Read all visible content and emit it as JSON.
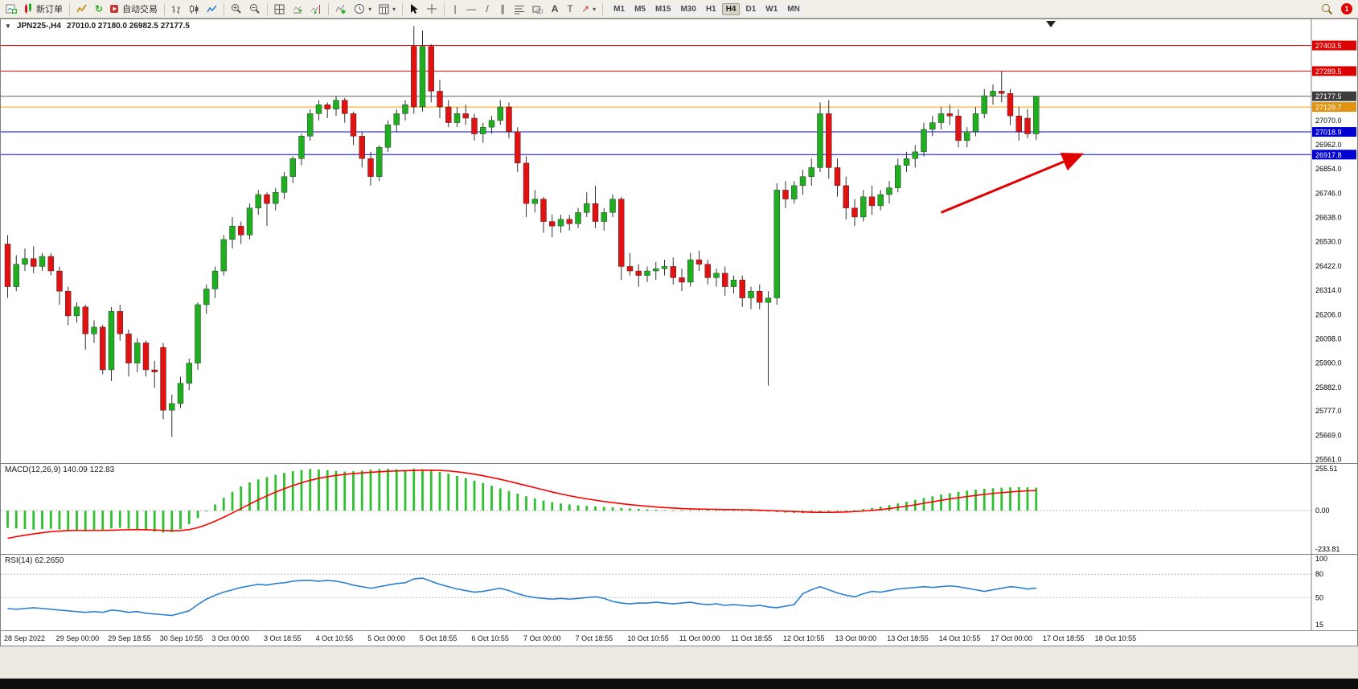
{
  "toolbar": {
    "new_order_label": "新订单",
    "autotrade_label": "自动交易",
    "timeframes": [
      "M1",
      "M5",
      "M15",
      "M30",
      "H1",
      "H4",
      "D1",
      "W1",
      "MN"
    ],
    "active_timeframe": "H4",
    "alert_count": "1"
  },
  "window": {
    "symbol": "JPN225-,H4",
    "ohlc": "27010.0 27180.0 26982.5 27177.5"
  },
  "macd": {
    "label": "MACD(12,26,9) 140.09 122.83",
    "axis_labels": [
      "255.51",
      "0.00",
      "-233.81"
    ]
  },
  "rsi": {
    "label": "RSI(14) 62.2650",
    "axis_labels": [
      "100",
      "80",
      "50",
      "15"
    ]
  },
  "chart_data": {
    "type": "candlestick",
    "symbol": "JPN225-,H4",
    "timeframe": "H4",
    "title": "JPN225-,H4  27010.0 27180.0 26982.5 27177.5",
    "current_bar": {
      "open": 27010.0,
      "high": 27180.0,
      "low": 26982.5,
      "close": 27177.5
    },
    "y_range": [
      25545,
      27520
    ],
    "colors": {
      "bull": "#1fae1f",
      "bear": "#e01212",
      "wick": "#333333",
      "macd_hist": "#2fbf2f",
      "macd_signal": "#ff0000",
      "rsi_line": "#2a7fd4",
      "arrow": "#e00000"
    },
    "price_axis": {
      "badges": [
        {
          "price": 27403.5,
          "color": "#dd0000"
        },
        {
          "price": 27289.5,
          "color": "#dd0000"
        },
        {
          "price": 27177.5,
          "color": "#3c3c3c"
        },
        {
          "price": 27129.7,
          "color": "#e09410"
        },
        {
          "price": 27018.9,
          "color": "#0000d0"
        },
        {
          "price": 26917.8,
          "color": "#0000d0"
        }
      ],
      "labels": [
        27070.0,
        26962.0,
        26854.0,
        26746.0,
        26638.0,
        26530.0,
        26422.0,
        26314.0,
        26206.0,
        26098.0,
        25990.0,
        25882.0,
        25777.0,
        25669.0,
        25561.0
      ]
    },
    "hlines": [
      {
        "price": 27403.5,
        "color": "#ff0000"
      },
      {
        "price": 27289.5,
        "color": "#ff0000"
      },
      {
        "price": 27177.5,
        "color": "#606060"
      },
      {
        "price": 27129.7,
        "color": "#ff9c00"
      },
      {
        "price": 27018.9,
        "color": "#0000ff"
      },
      {
        "price": 26917.8,
        "color": "#0000ff"
      }
    ],
    "annotations": [
      {
        "type": "arrow",
        "from_index": 108,
        "from_price": 26660,
        "to_index": 124,
        "to_price": 26915,
        "color": "#e00000"
      }
    ],
    "x_labels": [
      "28 Sep 2022",
      "29 Sep 00:00",
      "29 Sep 18:55",
      "30 Sep 10:55",
      "3 Oct 00:00",
      "3 Oct 18:55",
      "4 Oct 10:55",
      "5 Oct 00:00",
      "5 Oct 18:55",
      "6 Oct 10:55",
      "7 Oct 00:00",
      "7 Oct 18:55",
      "10 Oct 10:55",
      "11 Oct 00:00",
      "11 Oct 18:55",
      "12 Oct 10:55",
      "13 Oct 00:00",
      "13 Oct 18:55",
      "14 Oct 10:55",
      "17 Oct 00:00",
      "17 Oct 18:55",
      "18 Oct 10:55"
    ],
    "ohlc": [
      [
        26520,
        26560,
        26280,
        26330
      ],
      [
        26330,
        26470,
        26310,
        26430
      ],
      [
        26430,
        26500,
        26400,
        26455
      ],
      [
        26455,
        26510,
        26390,
        26420
      ],
      [
        26420,
        26480,
        26400,
        26465
      ],
      [
        26465,
        26480,
        26380,
        26400
      ],
      [
        26400,
        26420,
        26250,
        26310
      ],
      [
        26310,
        26330,
        26160,
        26200
      ],
      [
        26200,
        26260,
        26170,
        26240
      ],
      [
        26240,
        26250,
        26050,
        26120
      ],
      [
        26120,
        26180,
        26080,
        26150
      ],
      [
        26150,
        26160,
        25940,
        25960
      ],
      [
        25960,
        26240,
        25910,
        26220
      ],
      [
        26220,
        26250,
        26090,
        26120
      ],
      [
        26120,
        26140,
        25930,
        25990
      ],
      [
        25990,
        26100,
        25950,
        26080
      ],
      [
        26080,
        26090,
        25930,
        25960
      ],
      [
        25960,
        26000,
        25880,
        25950
      ],
      [
        26060,
        26080,
        25740,
        25780
      ],
      [
        25780,
        25850,
        25661,
        25810
      ],
      [
        25810,
        25930,
        25790,
        25900
      ],
      [
        25900,
        26010,
        25870,
        25990
      ],
      [
        25990,
        26260,
        25960,
        26250
      ],
      [
        26250,
        26340,
        26210,
        26320
      ],
      [
        26320,
        26420,
        26280,
        26400
      ],
      [
        26400,
        26560,
        26380,
        26540
      ],
      [
        26540,
        26640,
        26500,
        26600
      ],
      [
        26600,
        26620,
        26520,
        26560
      ],
      [
        26560,
        26700,
        26540,
        26680
      ],
      [
        26680,
        26760,
        26650,
        26740
      ],
      [
        26740,
        26750,
        26600,
        26700
      ],
      [
        26700,
        26770,
        26670,
        26750
      ],
      [
        26750,
        26840,
        26720,
        26820
      ],
      [
        26820,
        26910,
        26790,
        26900
      ],
      [
        26900,
        27010,
        26870,
        27000
      ],
      [
        27000,
        27120,
        26980,
        27100
      ],
      [
        27100,
        27160,
        27070,
        27140
      ],
      [
        27140,
        27150,
        27080,
        27120
      ],
      [
        27120,
        27180,
        27090,
        27160
      ],
      [
        27160,
        27170,
        27060,
        27100
      ],
      [
        27100,
        27110,
        26960,
        27000
      ],
      [
        27000,
        27020,
        26860,
        26900
      ],
      [
        26900,
        26930,
        26780,
        26820
      ],
      [
        26820,
        26960,
        26800,
        26950
      ],
      [
        26950,
        27070,
        26930,
        27050
      ],
      [
        27050,
        27120,
        27020,
        27100
      ],
      [
        27100,
        27160,
        27070,
        27140
      ],
      [
        27400,
        27490,
        27100,
        27130
      ],
      [
        27130,
        27470,
        27110,
        27400
      ],
      [
        27400,
        27410,
        27150,
        27200
      ],
      [
        27200,
        27250,
        27080,
        27130
      ],
      [
        27130,
        27160,
        27040,
        27060
      ],
      [
        27060,
        27130,
        27040,
        27100
      ],
      [
        27100,
        27140,
        27050,
        27080
      ],
      [
        27080,
        27100,
        26980,
        27010
      ],
      [
        27010,
        27060,
        26970,
        27040
      ],
      [
        27040,
        27090,
        27010,
        27070
      ],
      [
        27070,
        27160,
        27050,
        27130
      ],
      [
        27130,
        27150,
        26990,
        27020
      ],
      [
        27020,
        27040,
        26840,
        26880
      ],
      [
        26880,
        26910,
        26640,
        26700
      ],
      [
        26700,
        26760,
        26660,
        26720
      ],
      [
        26720,
        26730,
        26570,
        26620
      ],
      [
        26620,
        26650,
        26550,
        26600
      ],
      [
        26600,
        26650,
        26570,
        26630
      ],
      [
        26630,
        26650,
        26580,
        26610
      ],
      [
        26610,
        26680,
        26590,
        26660
      ],
      [
        26660,
        26750,
        26640,
        26700
      ],
      [
        26700,
        26780,
        26590,
        26620
      ],
      [
        26620,
        26680,
        26580,
        26660
      ],
      [
        26660,
        26740,
        26640,
        26720
      ],
      [
        26720,
        26730,
        26360,
        26420
      ],
      [
        26420,
        26480,
        26380,
        26400
      ],
      [
        26400,
        26430,
        26330,
        26380
      ],
      [
        26380,
        26420,
        26350,
        26400
      ],
      [
        26400,
        26440,
        26360,
        26410
      ],
      [
        26410,
        26450,
        26380,
        26420
      ],
      [
        26420,
        26460,
        26340,
        26370
      ],
      [
        26370,
        26410,
        26310,
        26350
      ],
      [
        26350,
        26480,
        26330,
        26450
      ],
      [
        26450,
        26490,
        26400,
        26430
      ],
      [
        26430,
        26450,
        26340,
        26370
      ],
      [
        26370,
        26410,
        26330,
        26390
      ],
      [
        26390,
        26420,
        26290,
        26330
      ],
      [
        26330,
        26380,
        26300,
        26360
      ],
      [
        26360,
        26380,
        26240,
        26280
      ],
      [
        26280,
        26330,
        26230,
        26310
      ],
      [
        26310,
        26340,
        26230,
        26260
      ],
      [
        26260,
        26310,
        25890,
        26280
      ],
      [
        26280,
        26790,
        26250,
        26760
      ],
      [
        26760,
        26800,
        26680,
        26720
      ],
      [
        26720,
        26800,
        26700,
        26780
      ],
      [
        26780,
        26850,
        26740,
        26820
      ],
      [
        26820,
        26900,
        26780,
        26860
      ],
      [
        26860,
        27150,
        26840,
        27100
      ],
      [
        27100,
        27160,
        26810,
        26860
      ],
      [
        26860,
        26900,
        26730,
        26780
      ],
      [
        26780,
        26820,
        26630,
        26680
      ],
      [
        26680,
        26720,
        26600,
        26640
      ],
      [
        26640,
        26760,
        26620,
        26730
      ],
      [
        26730,
        26780,
        26650,
        26690
      ],
      [
        26690,
        26760,
        26670,
        26740
      ],
      [
        26740,
        26800,
        26700,
        26770
      ],
      [
        26770,
        26900,
        26750,
        26870
      ],
      [
        26870,
        26930,
        26840,
        26900
      ],
      [
        26900,
        26960,
        26860,
        26930
      ],
      [
        26930,
        27060,
        26910,
        27030
      ],
      [
        27030,
        27090,
        27000,
        27060
      ],
      [
        27060,
        27130,
        27030,
        27100
      ],
      [
        27100,
        27140,
        27050,
        27090
      ],
      [
        27090,
        27120,
        26950,
        26980
      ],
      [
        26980,
        27040,
        26950,
        27020
      ],
      [
        27020,
        27130,
        27000,
        27100
      ],
      [
        27100,
        27210,
        27080,
        27180
      ],
      [
        27180,
        27230,
        27140,
        27200
      ],
      [
        27200,
        27290,
        27150,
        27190
      ],
      [
        27190,
        27210,
        27050,
        27090
      ],
      [
        27090,
        27130,
        26980,
        27020
      ],
      [
        27080,
        27120,
        26990,
        27010
      ],
      [
        27010,
        27180,
        26982.5,
        27177.5
      ]
    ],
    "indicators": {
      "macd": {
        "type": "bar+line",
        "label": "MACD(12,26,9) 140.09 122.83",
        "ylim": [
          -233.81,
          255.51
        ],
        "axis_values": [
          255.51,
          0.0,
          -233.81
        ],
        "histogram": [
          -105,
          -108,
          -112,
          -115,
          -112,
          -110,
          -114,
          -120,
          -124,
          -126,
          -122,
          -118,
          -108,
          -104,
          -110,
          -114,
          -120,
          -128,
          -133,
          -130,
          -112,
          -82,
          -45,
          -5,
          38,
          78,
          115,
          148,
          172,
          190,
          205,
          218,
          230,
          240,
          248,
          254,
          250,
          246,
          242,
          238,
          240,
          244,
          250,
          253,
          255,
          252,
          248,
          255,
          252,
          245,
          236,
          225,
          212,
          198,
          183,
          168,
          152,
          136,
          120,
          104,
          88,
          74,
          62,
          52,
          44,
          38,
          33,
          29,
          26,
          23,
          20,
          17,
          14,
          11,
          8,
          6,
          4,
          3,
          3,
          4,
          5,
          6,
          6,
          5,
          4,
          2,
          0,
          -3,
          -6,
          -9,
          -12,
          -14,
          -15,
          -14,
          -12,
          -9,
          -5,
          -1,
          4,
          10,
          17,
          25,
          34,
          44,
          55,
          66,
          77,
          88,
          98,
          107,
          115,
          122,
          128,
          133,
          137,
          140,
          142,
          143,
          142,
          140
        ],
        "signal": [
          -168,
          -158,
          -149,
          -141,
          -134,
          -128,
          -124,
          -121,
          -120,
          -120,
          -120,
          -120,
          -119,
          -117,
          -116,
          -115,
          -116,
          -118,
          -120,
          -122,
          -121,
          -115,
          -103,
          -86,
          -64,
          -40,
          -14,
          13,
          40,
          66,
          90,
          113,
          134,
          153,
          170,
          185,
          197,
          207,
          215,
          221,
          226,
          230,
          234,
          237,
          240,
          242,
          243,
          245,
          246,
          246,
          245,
          242,
          237,
          230,
          222,
          213,
          202,
          191,
          179,
          166,
          153,
          140,
          127,
          114,
          102,
          91,
          81,
          72,
          64,
          56,
          49,
          43,
          37,
          32,
          27,
          23,
          19,
          16,
          13,
          11,
          10,
          9,
          8,
          7,
          7,
          6,
          5,
          3,
          1,
          -1,
          -3,
          -5,
          -7,
          -9,
          -10,
          -10,
          -9,
          -8,
          -5,
          -2,
          2,
          7,
          13,
          20,
          28,
          36,
          45,
          54,
          63,
          71,
          79,
          86,
          93,
          99,
          105,
          110,
          114,
          118,
          121,
          122.83
        ]
      },
      "rsi": {
        "type": "line",
        "label": "RSI(14) 62.2650",
        "ylim": [
          0,
          100
        ],
        "levels": [
          80,
          50
        ],
        "axis_values": [
          100,
          80,
          50,
          15
        ],
        "values": [
          36,
          35,
          36,
          37,
          36,
          35,
          34,
          33,
          32,
          31,
          32,
          31,
          34,
          33,
          31,
          32,
          30,
          29,
          28,
          27,
          30,
          33,
          41,
          48,
          53,
          57,
          60,
          63,
          65,
          67,
          66,
          68,
          69,
          71,
          72,
          72,
          71,
          72,
          71,
          69,
          66,
          64,
          62,
          64,
          66,
          68,
          69,
          74,
          75,
          71,
          67,
          64,
          61,
          59,
          57,
          58,
          60,
          62,
          59,
          55,
          52,
          50,
          49,
          48,
          49,
          48,
          49,
          50,
          51,
          49,
          45,
          43,
          42,
          43,
          43,
          44,
          43,
          42,
          43,
          44,
          42,
          41,
          42,
          40,
          41,
          40,
          39,
          40,
          38,
          37,
          39,
          41,
          55,
          60,
          64,
          60,
          56,
          53,
          51,
          55,
          58,
          57,
          59,
          61,
          62,
          63,
          64,
          63,
          64,
          65,
          64,
          62,
          60,
          58,
          60,
          62,
          64,
          63,
          61,
          62.27
        ]
      }
    }
  }
}
